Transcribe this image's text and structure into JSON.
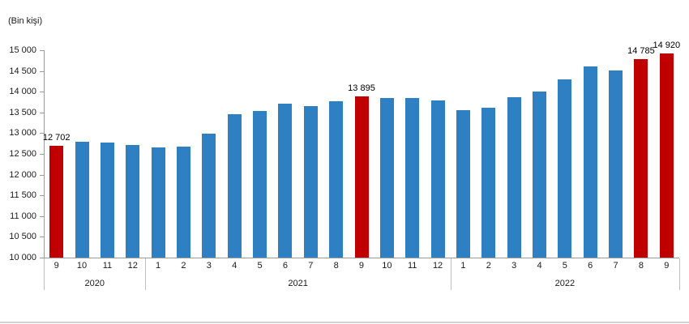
{
  "chart_data": {
    "type": "bar",
    "title": "",
    "unit_label": "(Bin kişi)",
    "xlabel": "",
    "ylabel": "(Bin kişi)",
    "ylim": [
      10000,
      15000
    ],
    "ytick_step": 500,
    "ytick_labels": [
      "10 000",
      "10 500",
      "11 000",
      "11 500",
      "12 000",
      "12 500",
      "13 000",
      "13 500",
      "14 000",
      "14 500",
      "15 000"
    ],
    "grid": false,
    "legend": "none",
    "colors": {
      "bar": "#2E80C3",
      "highlight": "#C00000",
      "axis": "#9B9B9B",
      "separator": "#BFBFBF",
      "text": "#000000"
    },
    "groups": [
      {
        "year": "2020",
        "start": 0,
        "count": 4
      },
      {
        "year": "2021",
        "start": 4,
        "count": 12
      },
      {
        "year": "2022",
        "start": 16,
        "count": 9
      }
    ],
    "bars": [
      {
        "month": "9",
        "year": "2020",
        "value": 12702,
        "highlighted": true,
        "label": "12 702"
      },
      {
        "month": "10",
        "year": "2020",
        "value": 12790,
        "highlighted": false
      },
      {
        "month": "11",
        "year": "2020",
        "value": 12770,
        "highlighted": false
      },
      {
        "month": "12",
        "year": "2020",
        "value": 12720,
        "highlighted": false
      },
      {
        "month": "1",
        "year": "2021",
        "value": 12655,
        "highlighted": false
      },
      {
        "month": "2",
        "year": "2021",
        "value": 12680,
        "highlighted": false
      },
      {
        "month": "3",
        "year": "2021",
        "value": 12990,
        "highlighted": false
      },
      {
        "month": "4",
        "year": "2021",
        "value": 13450,
        "highlighted": false
      },
      {
        "month": "5",
        "year": "2021",
        "value": 13530,
        "highlighted": false
      },
      {
        "month": "6",
        "year": "2021",
        "value": 13720,
        "highlighted": false
      },
      {
        "month": "7",
        "year": "2021",
        "value": 13660,
        "highlighted": false
      },
      {
        "month": "8",
        "year": "2021",
        "value": 13760,
        "highlighted": false
      },
      {
        "month": "9",
        "year": "2021",
        "value": 13895,
        "highlighted": true,
        "label": "13 895"
      },
      {
        "month": "10",
        "year": "2021",
        "value": 13855,
        "highlighted": false
      },
      {
        "month": "11",
        "year": "2021",
        "value": 13840,
        "highlighted": false
      },
      {
        "month": "12",
        "year": "2021",
        "value": 13780,
        "highlighted": false
      },
      {
        "month": "1",
        "year": "2022",
        "value": 13555,
        "highlighted": false
      },
      {
        "month": "2",
        "year": "2022",
        "value": 13610,
        "highlighted": false
      },
      {
        "month": "3",
        "year": "2022",
        "value": 13860,
        "highlighted": false
      },
      {
        "month": "4",
        "year": "2022",
        "value": 14010,
        "highlighted": false
      },
      {
        "month": "5",
        "year": "2022",
        "value": 14300,
        "highlighted": false
      },
      {
        "month": "6",
        "year": "2022",
        "value": 14600,
        "highlighted": false
      },
      {
        "month": "7",
        "year": "2022",
        "value": 14520,
        "highlighted": false
      },
      {
        "month": "8",
        "year": "2022",
        "value": 14785,
        "highlighted": true,
        "label": "14 785"
      },
      {
        "month": "9",
        "year": "2022",
        "value": 14920,
        "highlighted": true,
        "label": "14 920"
      }
    ]
  }
}
